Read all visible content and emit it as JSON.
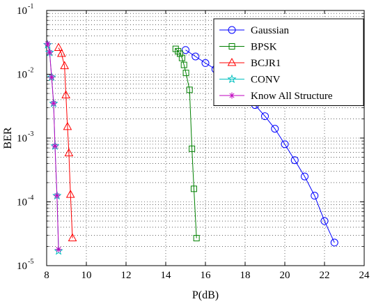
{
  "chart_data": {
    "type": "line",
    "xlabel": "P(dB)",
    "ylabel": "BER",
    "xlim": [
      8,
      24
    ],
    "ylim": [
      1e-05,
      0.1
    ],
    "y_scale": "log",
    "grid": true,
    "legend_position": "top-right",
    "x_ticks": [
      "8",
      "10",
      "12",
      "14",
      "16",
      "18",
      "20",
      "22",
      "24"
    ],
    "y_ticks": [
      {
        "base": "10",
        "exp": "-1"
      },
      {
        "base": "10",
        "exp": "-2"
      },
      {
        "base": "10",
        "exp": "-3"
      },
      {
        "base": "10",
        "exp": "-4"
      },
      {
        "base": "10",
        "exp": "-5"
      }
    ],
    "series": [
      {
        "name": "Gaussian",
        "color": "#0000ff",
        "marker": "circle",
        "x": [
          15.0,
          15.5,
          16.0,
          16.5,
          17.0,
          17.5,
          18.0,
          18.5,
          19.0,
          19.5,
          20.0,
          20.5,
          21.0,
          21.5,
          22.0,
          22.5
        ],
        "y": [
          0.024,
          0.019,
          0.015,
          0.012,
          0.0095,
          0.007,
          0.005,
          0.0033,
          0.0022,
          0.0014,
          0.0008,
          0.00045,
          0.00025,
          0.000125,
          5e-05,
          2.3e-05
        ]
      },
      {
        "name": "BPSK",
        "color": "#008000",
        "marker": "square",
        "x": [
          14.5,
          14.62,
          14.72,
          14.82,
          14.92,
          15.02,
          15.2,
          15.32,
          15.42,
          15.55
        ],
        "y": [
          0.025,
          0.023,
          0.021,
          0.018,
          0.014,
          0.0105,
          0.0057,
          0.00068,
          0.00016,
          2.7e-05
        ]
      },
      {
        "name": "BCJR1",
        "color": "#ff0000",
        "marker": "triangle",
        "x": [
          8.6,
          8.75,
          8.9,
          8.97,
          9.05,
          9.12,
          9.2,
          9.3
        ],
        "y": [
          0.026,
          0.021,
          0.0135,
          0.0047,
          0.0015,
          0.00058,
          0.00013,
          2.7e-05
        ]
      },
      {
        "name": "CONV",
        "color": "#00bfbf",
        "marker": "star",
        "x": [
          8.05,
          8.15,
          8.25,
          8.35,
          8.42,
          8.52,
          8.6
        ],
        "y": [
          0.029,
          0.022,
          0.009,
          0.0035,
          0.00075,
          0.000125,
          1.7e-05
        ]
      },
      {
        "name": "Know All Structure",
        "color": "#bf00bf",
        "marker": "asterisk",
        "x": [
          8.05,
          8.15,
          8.25,
          8.35,
          8.42,
          8.52,
          8.6
        ],
        "y": [
          0.03,
          0.022,
          0.009,
          0.0035,
          0.00075,
          0.000125,
          1.8e-05
        ]
      }
    ]
  }
}
